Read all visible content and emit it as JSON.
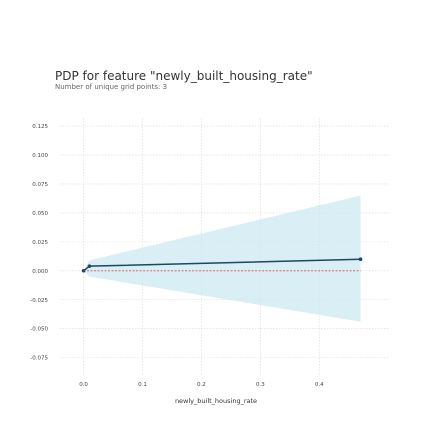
{
  "chart_data": {
    "type": "line",
    "title": "PDP for feature \"newly_built_housing_rate\"",
    "subtitle": "Number of unique grid points: 3",
    "xlabel": "newly_built_housing_rate",
    "ylabel": "",
    "xlim": [
      -0.04,
      0.52
    ],
    "ylim": [
      -0.09,
      0.132
    ],
    "x_ticks": [
      "0.0",
      "0.1",
      "0.2",
      "0.3",
      "0.4"
    ],
    "y_ticks": [
      "0.125",
      "0.100",
      "0.075",
      "0.050",
      "0.025",
      "0.000",
      "-0.025",
      "-0.050",
      "-0.075"
    ],
    "grid": true,
    "series": [
      {
        "x": [
          0.0,
          0.01,
          0.47
        ],
        "values": [
          0.0,
          0.004,
          0.01
        ],
        "lower": [
          0.0,
          -0.005,
          -0.044
        ],
        "upper": [
          0.0,
          0.009,
          0.065
        ]
      }
    ],
    "baseline": 0.0,
    "colors": {
      "line": "#1a4a5e",
      "band": "#cde8f3",
      "baseline": "#d9534f",
      "grid": "#d8d8d8"
    }
  }
}
